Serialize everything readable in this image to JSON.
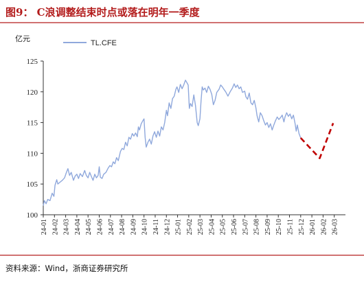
{
  "caption": {
    "title": "图9： C浪调整结束时点或落在明年一季度"
  },
  "source_note": "资料来源：Wind，浙商证券研究所",
  "colors": {
    "accent": "#b31c1c",
    "series": "#8fa8dc",
    "projection": "#c00000",
    "axis": "#333333"
  },
  "chart_data": {
    "type": "line",
    "ylabel": "亿元",
    "ylim": [
      100,
      125
    ],
    "yticks": [
      100,
      105,
      110,
      115,
      120,
      125
    ],
    "x_domain": [
      0,
      27
    ],
    "xticks": [
      "24-01",
      "24-02",
      "24-03",
      "24-04",
      "24-05",
      "24-06",
      "24-07",
      "24-08",
      "24-09",
      "24-10",
      "24-11",
      "24-12",
      "25-01",
      "25-02",
      "25-03",
      "25-04",
      "25-05",
      "25-06",
      "25-07",
      "25-08",
      "25-09",
      "25-10",
      "25-11",
      "25-12",
      "26-01",
      "26-02",
      "26-03"
    ],
    "legend": {
      "position": "top-left"
    },
    "series": [
      {
        "name": "TL.CFE",
        "style": "solid",
        "points": [
          [
            0.0,
            101.5
          ],
          [
            0.1,
            102.3
          ],
          [
            0.25,
            101.8
          ],
          [
            0.4,
            102.5
          ],
          [
            0.6,
            102.3
          ],
          [
            0.8,
            103.5
          ],
          [
            0.95,
            103.0
          ],
          [
            1.05,
            104.8
          ],
          [
            1.2,
            105.7
          ],
          [
            1.3,
            105.0
          ],
          [
            1.5,
            105.3
          ],
          [
            1.7,
            105.6
          ],
          [
            1.9,
            106.0
          ],
          [
            2.05,
            106.8
          ],
          [
            2.2,
            107.5
          ],
          [
            2.35,
            106.4
          ],
          [
            2.5,
            106.9
          ],
          [
            2.7,
            105.6
          ],
          [
            2.85,
            106.3
          ],
          [
            3.0,
            106.6
          ],
          [
            3.15,
            105.9
          ],
          [
            3.3,
            106.7
          ],
          [
            3.5,
            106.2
          ],
          [
            3.7,
            107.2
          ],
          [
            3.85,
            106.4
          ],
          [
            4.0,
            106.0
          ],
          [
            4.15,
            106.9
          ],
          [
            4.3,
            106.2
          ],
          [
            4.45,
            105.6
          ],
          [
            4.6,
            106.6
          ],
          [
            4.75,
            106.0
          ],
          [
            4.9,
            106.4
          ],
          [
            5.0,
            107.8
          ],
          [
            5.1,
            106.1
          ],
          [
            5.25,
            105.9
          ],
          [
            5.4,
            106.6
          ],
          [
            5.6,
            106.9
          ],
          [
            5.8,
            107.6
          ],
          [
            5.95,
            108.0
          ],
          [
            6.1,
            107.8
          ],
          [
            6.25,
            108.6
          ],
          [
            6.4,
            108.3
          ],
          [
            6.55,
            109.3
          ],
          [
            6.7,
            108.8
          ],
          [
            6.9,
            110.3
          ],
          [
            7.05,
            110.8
          ],
          [
            7.2,
            110.6
          ],
          [
            7.35,
            111.8
          ],
          [
            7.5,
            111.2
          ],
          [
            7.65,
            112.6
          ],
          [
            7.8,
            112.3
          ],
          [
            7.95,
            113.2
          ],
          [
            8.1,
            112.8
          ],
          [
            8.25,
            113.3
          ],
          [
            8.4,
            112.7
          ],
          [
            8.5,
            114.3
          ],
          [
            8.6,
            113.8
          ],
          [
            8.75,
            114.8
          ],
          [
            8.9,
            115.3
          ],
          [
            9.0,
            115.6
          ],
          [
            9.1,
            112.6
          ],
          [
            9.2,
            111.0
          ],
          [
            9.35,
            111.8
          ],
          [
            9.5,
            112.3
          ],
          [
            9.65,
            111.5
          ],
          [
            9.8,
            112.8
          ],
          [
            9.95,
            113.5
          ],
          [
            10.1,
            112.6
          ],
          [
            10.25,
            113.6
          ],
          [
            10.4,
            112.8
          ],
          [
            10.55,
            114.3
          ],
          [
            10.7,
            113.8
          ],
          [
            10.85,
            115.0
          ],
          [
            11.0,
            117.0
          ],
          [
            11.1,
            116.1
          ],
          [
            11.25,
            118.2
          ],
          [
            11.4,
            117.3
          ],
          [
            11.55,
            118.9
          ],
          [
            11.7,
            119.3
          ],
          [
            11.85,
            120.4
          ],
          [
            11.95,
            120.8
          ],
          [
            12.1,
            119.9
          ],
          [
            12.25,
            121.2
          ],
          [
            12.4,
            120.5
          ],
          [
            12.55,
            121.1
          ],
          [
            12.7,
            121.9
          ],
          [
            12.8,
            121.6
          ],
          [
            12.95,
            121.1
          ],
          [
            13.05,
            117.3
          ],
          [
            13.15,
            118.1
          ],
          [
            13.3,
            117.6
          ],
          [
            13.45,
            119.5
          ],
          [
            13.6,
            117.8
          ],
          [
            13.75,
            115.0
          ],
          [
            13.85,
            114.5
          ],
          [
            14.0,
            115.6
          ],
          [
            14.1,
            118.6
          ],
          [
            14.2,
            120.8
          ],
          [
            14.3,
            120.3
          ],
          [
            14.45,
            120.6
          ],
          [
            14.6,
            119.9
          ],
          [
            14.75,
            120.9
          ],
          [
            14.9,
            120.4
          ],
          [
            15.05,
            119.6
          ],
          [
            15.2,
            117.9
          ],
          [
            15.35,
            118.6
          ],
          [
            15.5,
            119.9
          ],
          [
            15.7,
            120.4
          ],
          [
            15.85,
            121.1
          ],
          [
            16.0,
            120.8
          ],
          [
            16.1,
            120.5
          ],
          [
            16.3,
            120.0
          ],
          [
            16.5,
            119.3
          ],
          [
            16.7,
            120.0
          ],
          [
            16.9,
            120.6
          ],
          [
            17.05,
            121.3
          ],
          [
            17.2,
            120.7
          ],
          [
            17.35,
            121.1
          ],
          [
            17.5,
            120.5
          ],
          [
            17.65,
            120.8
          ],
          [
            17.8,
            119.9
          ],
          [
            18.0,
            120.1
          ],
          [
            18.1,
            119.2
          ],
          [
            18.25,
            118.8
          ],
          [
            18.4,
            119.8
          ],
          [
            18.55,
            118.2
          ],
          [
            18.7,
            117.9
          ],
          [
            18.85,
            118.6
          ],
          [
            19.0,
            117.4
          ],
          [
            19.1,
            116.1
          ],
          [
            19.25,
            115.1
          ],
          [
            19.4,
            116.6
          ],
          [
            19.55,
            116.1
          ],
          [
            19.7,
            115.3
          ],
          [
            19.85,
            114.6
          ],
          [
            20.0,
            115.0
          ],
          [
            20.15,
            114.2
          ],
          [
            20.3,
            114.8
          ],
          [
            20.45,
            113.8
          ],
          [
            20.6,
            114.6
          ],
          [
            20.75,
            115.3
          ],
          [
            20.9,
            115.9
          ],
          [
            21.05,
            115.5
          ],
          [
            21.2,
            115.8
          ],
          [
            21.35,
            116.2
          ],
          [
            21.5,
            115.1
          ],
          [
            21.6,
            115.9
          ],
          [
            21.75,
            116.6
          ],
          [
            21.9,
            116.0
          ],
          [
            22.05,
            116.4
          ],
          [
            22.2,
            115.6
          ],
          [
            22.35,
            116.2
          ],
          [
            22.5,
            114.8
          ],
          [
            22.6,
            113.6
          ],
          [
            22.7,
            114.6
          ],
          [
            22.85,
            113.2
          ],
          [
            23.0,
            112.5
          ]
        ]
      },
      {
        "name": "",
        "style": "dashed",
        "points": [
          [
            23.0,
            112.5
          ],
          [
            24.7,
            109.2
          ],
          [
            25.9,
            114.9
          ]
        ]
      }
    ]
  }
}
